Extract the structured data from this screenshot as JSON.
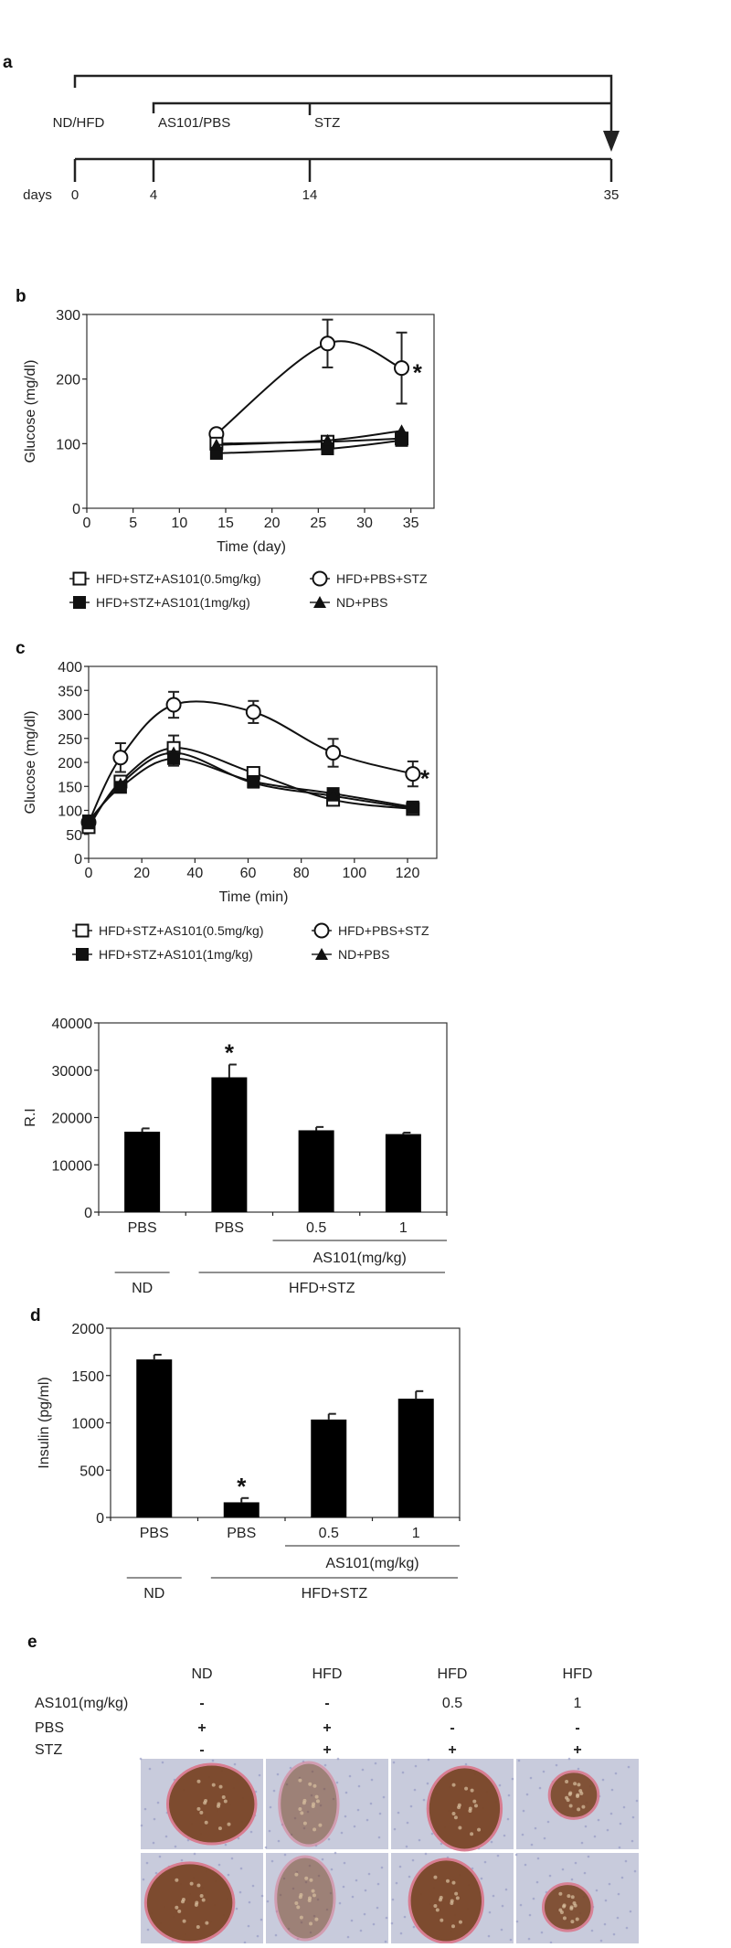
{
  "panel_a": {
    "label": "a",
    "treatments": [
      "ND/HFD",
      "AS101/PBS",
      "STZ"
    ],
    "days_label": "days",
    "day_ticks": [
      "0",
      "4",
      "14",
      "35"
    ]
  },
  "chart_data": [
    {
      "panel_label": "b",
      "type": "line",
      "xlabel": "Time (day)",
      "ylabel": "Glucose (mg/dl)",
      "xlim": [
        0,
        37.5
      ],
      "ylim": [
        0,
        300
      ],
      "x_ticks": [
        "0",
        "5",
        "10",
        "15",
        "20",
        "25",
        "30",
        "35"
      ],
      "y_ticks": [
        "0",
        "100",
        "200",
        "300"
      ],
      "series": [
        {
          "name": "HFD+STZ+AS101(0.5mg/kg)",
          "marker": "open-square",
          "x": [
            14,
            26,
            34
          ],
          "y": [
            100,
            103,
            108
          ],
          "err": [
            null,
            null,
            null
          ]
        },
        {
          "name": "HFD+STZ+AS101(1mg/kg)",
          "marker": "filled-square",
          "x": [
            14,
            26,
            34
          ],
          "y": [
            85,
            92,
            105
          ],
          "err": [
            null,
            null,
            null
          ]
        },
        {
          "name": "HFD+PBS+STZ",
          "marker": "open-circle",
          "x": [
            14,
            26,
            34
          ],
          "y": [
            115,
            255,
            217
          ],
          "err": [
            null,
            37,
            55
          ]
        },
        {
          "name": "ND+PBS",
          "marker": "filled-triangle",
          "x": [
            14,
            26,
            34
          ],
          "y": [
            98,
            105,
            120
          ],
          "err": [
            null,
            null,
            null
          ]
        }
      ],
      "annotations": [
        {
          "text": "*",
          "x": 35.7,
          "y": 217
        }
      ]
    },
    {
      "panel_label": "c",
      "type": "line",
      "xlabel": "Time (min)",
      "ylabel": "Glucose (mg/dl)",
      "xlim": [
        0,
        131
      ],
      "ylim": [
        0,
        400
      ],
      "x_ticks": [
        "0",
        "20",
        "40",
        "60",
        "80",
        "100",
        "120"
      ],
      "y_ticks": [
        "0",
        "50",
        "100",
        "150",
        "200",
        "250",
        "300",
        "350",
        "400"
      ],
      "series": [
        {
          "name": "HFD+STZ+AS101(0.5mg/kg)",
          "marker": "open-square",
          "x": [
            0,
            12,
            32,
            62,
            92,
            122
          ],
          "y": [
            65,
            160,
            230,
            178,
            122,
            103
          ],
          "err": [
            null,
            null,
            26,
            null,
            null,
            null
          ]
        },
        {
          "name": "HFD+STZ+AS101(1mg/kg)",
          "marker": "filled-square",
          "x": [
            0,
            12,
            32,
            62,
            92,
            122
          ],
          "y": [
            78,
            148,
            208,
            160,
            135,
            107
          ],
          "err": [
            null,
            null,
            15,
            null,
            null,
            null
          ]
        },
        {
          "name": "HFD+PBS+STZ",
          "marker": "open-circle",
          "x": [
            0,
            12,
            32,
            62,
            92,
            122
          ],
          "y": [
            75,
            210,
            320,
            305,
            220,
            176
          ],
          "err": [
            null,
            30,
            27,
            23,
            29,
            26
          ]
        },
        {
          "name": "ND+PBS",
          "marker": "filled-triangle",
          "x": [
            0,
            12,
            32,
            62,
            92,
            122
          ],
          "y": [
            72,
            155,
            220,
            157,
            130,
            104
          ],
          "err": [
            null,
            null,
            null,
            null,
            null,
            null
          ]
        }
      ],
      "annotations": [
        {
          "text": "*",
          "x": 126.5,
          "y": 176
        }
      ]
    },
    {
      "type": "bar",
      "ylabel": "R.I",
      "ylim": [
        0,
        40000
      ],
      "y_ticks": [
        "0",
        "10000",
        "20000",
        "30000",
        "40000"
      ],
      "categories": [
        "PBS",
        "PBS",
        "0.5",
        "1"
      ],
      "values": [
        17000,
        28500,
        17300,
        16500
      ],
      "err": [
        700,
        2700,
        700,
        300
      ],
      "bar_color": "#000000",
      "annotations": [
        {
          "text": "*",
          "category": 1
        }
      ],
      "sub_group": {
        "label": "AS101(mg/kg)",
        "categories": [
          2,
          3
        ]
      },
      "groups": [
        {
          "label": "ND",
          "categories": [
            0
          ]
        },
        {
          "label": "HFD+STZ",
          "categories": [
            1,
            2,
            3
          ]
        }
      ]
    },
    {
      "panel_label": "d",
      "type": "bar",
      "ylabel": "Insulin (pg/ml)",
      "ylim": [
        0,
        2000
      ],
      "y_ticks": [
        "0",
        "500",
        "1000",
        "1500",
        "2000"
      ],
      "categories": [
        "PBS",
        "PBS",
        "0.5",
        "1"
      ],
      "values": [
        1670,
        160,
        1035,
        1255
      ],
      "err": [
        50,
        45,
        60,
        80
      ],
      "bar_color": "#000000",
      "annotations": [
        {
          "text": "*",
          "category": 1
        }
      ],
      "sub_group": {
        "label": "AS101(mg/kg)",
        "categories": [
          2,
          3
        ]
      },
      "groups": [
        {
          "label": "ND",
          "categories": [
            0
          ]
        },
        {
          "label": "HFD+STZ",
          "categories": [
            1,
            2,
            3
          ]
        }
      ]
    }
  ],
  "panel_e": {
    "label": "e",
    "row_labels": [
      "AS101(mg/kg)",
      "PBS",
      "STZ"
    ],
    "columns": [
      {
        "diet": "ND",
        "as101": "-",
        "pbs": "+",
        "stz": "-"
      },
      {
        "diet": "HFD",
        "as101": "-",
        "pbs": "+",
        "stz": "+"
      },
      {
        "diet": "HFD",
        "as101": "0.5",
        "pbs": "-",
        "stz": "+"
      },
      {
        "diet": "HFD",
        "as101": "1",
        "pbs": "-",
        "stz": "+"
      }
    ],
    "colors": {
      "tissue": "#c8cbdc",
      "islet": "#7a4526",
      "rim": "#d9798e"
    }
  }
}
